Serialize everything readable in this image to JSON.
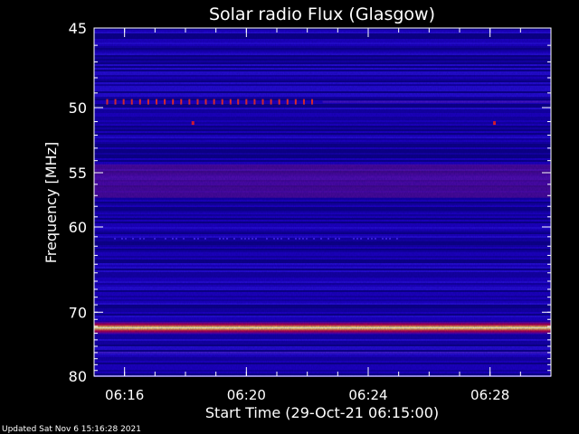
{
  "chart_data": {
    "type": "heatmap",
    "title": "Solar radio Flux (Glasgow)",
    "xlabel": "Start Time (29-Oct-21 06:15:00)",
    "ylabel": "Frequency [MHz]",
    "x_ticks": [
      "06:16",
      "06:20",
      "06:24",
      "06:28"
    ],
    "x_tick_minutes": [
      16,
      20,
      24,
      28
    ],
    "xlim_minutes": [
      15.0,
      30.0
    ],
    "y_ticks": [
      45,
      50,
      55,
      60,
      70,
      80
    ],
    "ylim": [
      45,
      80
    ],
    "y_scale": "reciprocal",
    "colormap": "black-blue-red-yellow-white",
    "bands": [
      {
        "freq_mhz": 72.2,
        "description": "strong continuous emission",
        "level": 1.0
      },
      {
        "freq_mhz": 49.6,
        "description": "periodic spikes",
        "level": 0.6
      },
      {
        "freq_mhz": 56.0,
        "description": "broad enhancement",
        "level": 0.45
      },
      {
        "freq_mhz": 61.2,
        "description": "faint intermittent band",
        "level": 0.3
      }
    ],
    "grid": false
  },
  "footer": {
    "updated": "Updated Sat Nov  6 15:16:28 2021"
  }
}
